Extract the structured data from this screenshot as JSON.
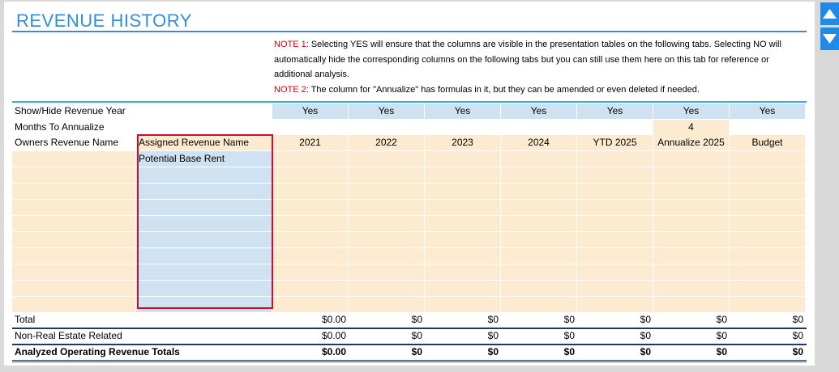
{
  "title": "REVENUE HISTORY",
  "notes": [
    {
      "label": "NOTE 1",
      "text": ": Selecting YES will ensure that the columns are visible in the presentation tables on the following tabs. Selecting NO will automatically hide the corresponding columns on the following tabs but you can still use them here on this tab for reference or additional analysis."
    },
    {
      "label": "NOTE 2",
      "text": ": The column for \"Annualize\" has formulas in it, but they can be amended or even deleted if needed."
    }
  ],
  "table": {
    "show_hide": {
      "label": "Show/Hide Revenue Year",
      "values": [
        "Yes",
        "Yes",
        "Yes",
        "Yes",
        "Yes",
        "Yes",
        "Yes"
      ]
    },
    "months": {
      "label": "Months To Annualize",
      "value": 4
    },
    "header": {
      "label": "Owners Revenue Name",
      "assigned": "Assigned Revenue Name",
      "columns": [
        "2021",
        "2022",
        "2023",
        "2024",
        "YTD 2025",
        "Annualize 2025",
        "Budget"
      ]
    },
    "assigned_names": [
      "Potential Base Rent"
    ],
    "totals": [
      {
        "label": "Total",
        "values": [
          "$0.00",
          "$0",
          "$0",
          "$0",
          "$0",
          "$0",
          "$0"
        ]
      },
      {
        "label": "Non-Real Estate Related",
        "values": [
          "$0.00",
          "$0",
          "$0",
          "$0",
          "$0",
          "$0",
          "$0"
        ]
      },
      {
        "label": "Analyzed Operating Revenue Totals",
        "values": [
          "$0.00",
          "$0",
          "$0",
          "$0",
          "$0",
          "$0",
          "$0"
        ]
      }
    ]
  }
}
